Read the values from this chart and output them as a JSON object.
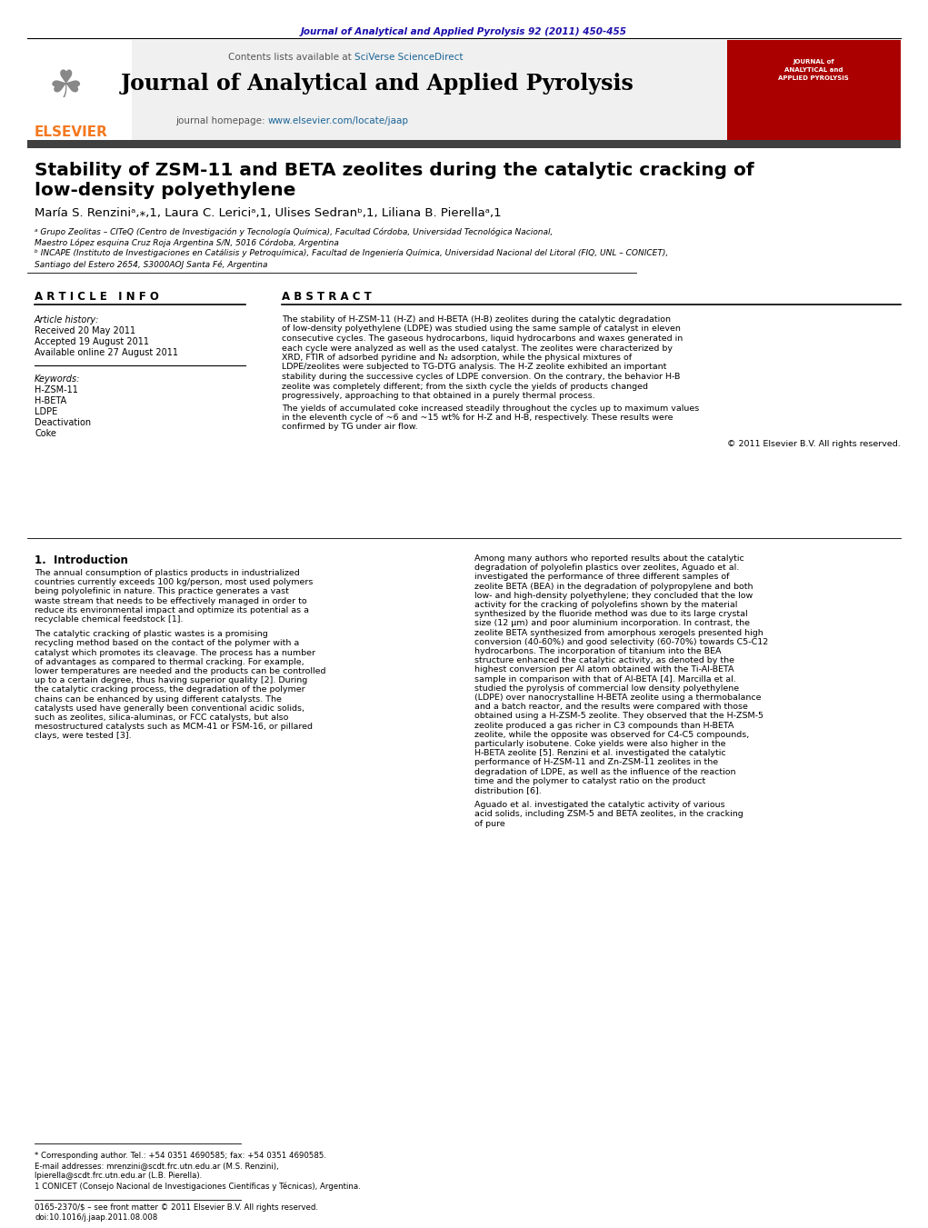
{
  "journal_ref": "Journal of Analytical and Applied Pyrolysis 92 (2011) 450-455",
  "journal_ref_color": "#1a0dab",
  "contents_line": "Contents lists available at",
  "sciverse_text": "SciVerse ScienceDirect",
  "sciverse_color": "#1a6496",
  "journal_title": "Journal of Analytical and Applied Pyrolysis",
  "journal_homepage_label": "journal homepage:",
  "journal_url": "www.elsevier.com/locate/jaap",
  "journal_url_color": "#1a6496",
  "paper_title_line1": "Stability of ZSM-11 and BETA zeolites during the catalytic cracking of",
  "paper_title_line2": "low-density polyethylene",
  "authors": "María S. Renziniᵃ,⁎,1, Laura C. Lericiᵃ,1, Ulises Sedranᵇ,1, Liliana B. Pierellaᵃ,1",
  "affil_a": "ᵃ Grupo Zeolitas – CITeQ (Centro de Investigación y Tecnología Química), Facultad Córdoba, Universidad Tecnológica Nacional,",
  "affil_a2": "Maestro López esquina Cruz Roja Argentina S/N, 5016 Córdoba, Argentina",
  "affil_b": "ᵇ INCAPE (Instituto de Investigaciones en Catálisis y Petroquímica), Facultad de Ingeniería Química, Universidad Nacional del Litoral (FIQ, UNL – CONICET),",
  "affil_b2": "Santiago del Estero 2654, S3000AOJ Santa Fé, Argentina",
  "article_info_header": "A R T I C L E   I N F O",
  "abstract_header": "A B S T R A C T",
  "article_history_label": "Article history:",
  "received": "Received 20 May 2011",
  "accepted": "Accepted 19 August 2011",
  "available": "Available online 27 August 2011",
  "keywords_label": "Keywords:",
  "keywords": [
    "H-ZSM-11",
    "H-BETA",
    "LDPE",
    "Deactivation",
    "Coke"
  ],
  "abstract_text": "The stability of H-ZSM-11 (H-Z) and H-BETA (H-B) zeolites during the catalytic degradation of low-density polyethylene (LDPE) was studied using the same sample of catalyst in eleven consecutive cycles. The gaseous hydrocarbons, liquid hydrocarbons and waxes generated in each cycle were analyzed as well as the used catalyst. The zeolites were characterized by XRD, FTIR of adsorbed pyridine and N₂ adsorption, while the physical mixtures of LDPE/zeolites were subjected to TG-DTG analysis. The H-Z zeolite exhibited an important stability during the successive cycles of LDPE conversion. On the contrary, the behavior H-B zeolite was completely different; from the sixth cycle the yields of products changed progressively, approaching to that obtained in a purely thermal process.",
  "abstract_text2": "   The yields of accumulated coke increased steadily throughout the cycles up to maximum values in the eleventh cycle of ~6 and ~15 wt% for H-Z and H-B, respectively. These results were confirmed by TG under air flow.",
  "copyright": "© 2011 Elsevier B.V. All rights reserved.",
  "intro_header": "1.  Introduction",
  "intro_p1": "The annual consumption of plastics products in industrialized countries currently exceeds 100 kg/person, most used polymers being polyolefinic in nature. This practice generates a vast waste stream that needs to be effectively managed in order to reduce its environmental impact and optimize its potential as a recyclable chemical feedstock [1].",
  "intro_p2": "The catalytic cracking of plastic wastes is a promising recycling method based on the contact of the polymer with a catalyst which promotes its cleavage. The process has a number of advantages as compared to thermal cracking. For example, lower temperatures are needed and the products can be controlled up to a certain degree, thus having superior quality [2]. During the catalytic cracking process, the degradation of the polymer chains can be enhanced by using different catalysts. The catalysts used have generally been conventional acidic solids, such as zeolites, silica-aluminas, or FCC catalysts, but also mesostructured catalysts such as MCM-41 or FSM-16, or pillared clays, were tested [3].",
  "intro_p3_right": "Among many authors who reported results about the catalytic degradation of polyolefin plastics over zeolites, Aguado et al. investigated the performance of three different samples of zeolite BETA (BEA) in the degradation of polypropylene and both low- and high-density polyethylene; they concluded that the low activity for the cracking of polyolefins shown by the material synthesized by the fluoride method was due to its large crystal size (12 μm) and poor aluminium incorporation. In contrast, the zeolite BETA synthesized from amorphous xerogels presented high conversion (40-60%) and good selectivity (60-70%) towards C5-C12 hydrocarbons. The incorporation of titanium into the BEA structure enhanced the catalytic activity, as denoted by the highest conversion per Al atom obtained with the Ti-Al-BETA sample in comparison with that of Al-BETA [4]. Marcilla et al. studied the pyrolysis of commercial low density polyethylene (LDPE) over nanocrystalline H-BETA zeolite using a thermobalance and a batch reactor, and the results were compared with those obtained using a H-ZSM-5 zeolite. They observed that the H-ZSM-5 zeolite produced a gas richer in C3 compounds than H-BETA zeolite, while the opposite was observed for C4-C5 compounds, particularly isobutene. Coke yields were also higher in the H-BETA zeolite [5]. Renzini et al. investigated the catalytic performance of H-ZSM-11 and Zn-ZSM-11 zeolites in the degradation of LDPE, as well as the influence of the reaction time and the polymer to catalyst ratio on the product distribution [6].",
  "intro_p4_right": "Aguado et al. investigated the catalytic activity of various acid solids, including ZSM-5 and BETA zeolites, in the cracking of pure",
  "footnote_corresponding": "* Corresponding author. Tel.: +54 0351 4690585; fax: +54 0351 4690585.",
  "footnote_email": "E-mail addresses: mrenzini@scdt.frc.utn.edu.ar (M.S. Renzini),",
  "footnote_email2": "lpierella@scdt.frc.utn.edu.ar (L.B. Pierella).",
  "footnote_1": "1 CONICET (Consejo Nacional de Investigaciones Científicas y Técnicas), Argentina.",
  "issn": "0165-2370/$ – see front matter © 2011 Elsevier B.V. All rights reserved.",
  "doi": "doi:10.1016/j.jaap.2011.08.008",
  "header_bg": "#f0f0f0",
  "elsevier_orange": "#f47920",
  "dark_bar_color": "#404040",
  "text_color": "#000000",
  "link_color": "#1a6496"
}
